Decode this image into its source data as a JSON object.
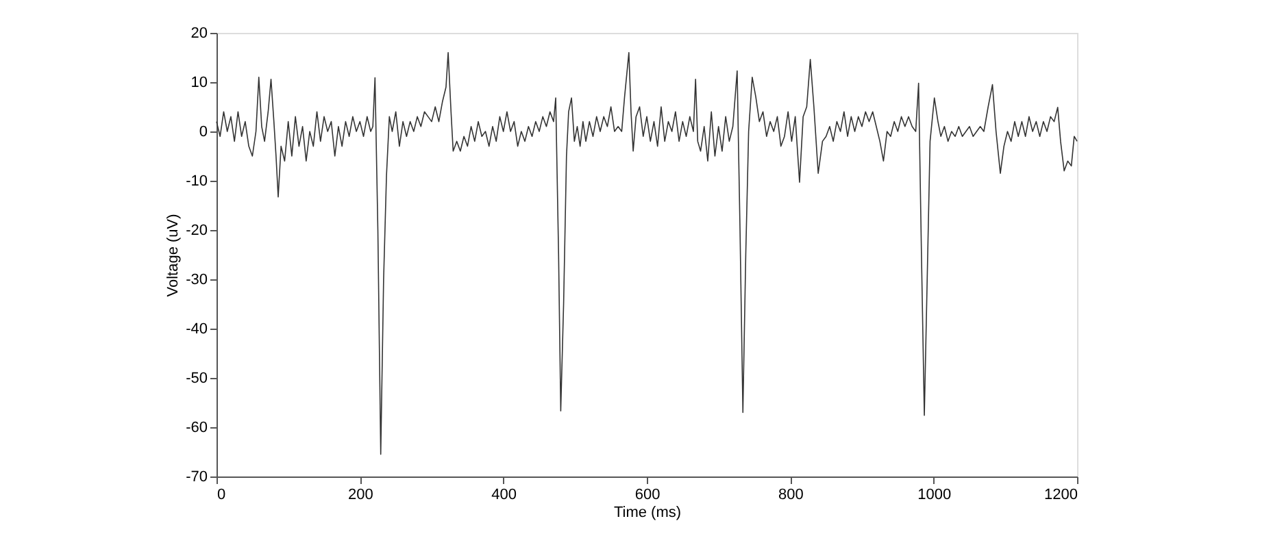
{
  "chart_data": {
    "type": "line",
    "xlabel": "Time (ms)",
    "ylabel": "Voltage (uV)",
    "x": [
      0,
      5,
      10,
      15,
      20,
      25,
      30,
      35,
      40,
      45,
      50,
      55,
      59,
      63,
      67,
      72,
      76,
      80,
      83,
      86,
      90,
      95,
      100,
      105,
      110,
      115,
      120,
      125,
      130,
      135,
      140,
      145,
      150,
      155,
      160,
      165,
      170,
      175,
      180,
      185,
      190,
      195,
      200,
      205,
      210,
      215,
      218,
      221,
      225,
      229,
      233,
      237,
      241,
      245,
      250,
      255,
      260,
      265,
      270,
      275,
      280,
      285,
      290,
      295,
      300,
      305,
      310,
      315,
      320,
      323,
      327,
      330,
      335,
      340,
      345,
      350,
      355,
      360,
      365,
      370,
      375,
      380,
      385,
      390,
      395,
      400,
      405,
      410,
      415,
      420,
      425,
      430,
      435,
      440,
      445,
      450,
      455,
      460,
      465,
      470,
      473,
      477,
      480,
      484,
      488,
      491,
      495,
      499,
      503,
      507,
      511,
      515,
      520,
      525,
      530,
      535,
      540,
      545,
      550,
      555,
      560,
      565,
      569,
      575,
      578,
      581,
      585,
      590,
      595,
      600,
      605,
      610,
      615,
      620,
      625,
      630,
      635,
      640,
      645,
      650,
      655,
      660,
      665,
      668,
      671,
      675,
      680,
      685,
      690,
      695,
      700,
      705,
      710,
      715,
      720,
      726,
      730,
      734,
      738,
      742,
      747,
      752,
      757,
      762,
      767,
      772,
      777,
      782,
      787,
      792,
      797,
      802,
      807,
      813,
      818,
      823,
      828,
      833,
      839,
      845,
      850,
      855,
      860,
      865,
      870,
      875,
      880,
      885,
      890,
      895,
      900,
      905,
      910,
      915,
      920,
      925,
      930,
      935,
      940,
      945,
      950,
      955,
      960,
      965,
      970,
      975,
      979,
      983,
      987,
      991,
      995,
      1001,
      1006,
      1010,
      1015,
      1020,
      1025,
      1030,
      1035,
      1040,
      1045,
      1050,
      1055,
      1060,
      1065,
      1070,
      1076,
      1082,
      1087,
      1093,
      1098,
      1103,
      1108,
      1113,
      1118,
      1123,
      1128,
      1133,
      1138,
      1143,
      1148,
      1153,
      1158,
      1163,
      1168,
      1173,
      1177,
      1182,
      1187,
      1192,
      1196,
      1200
    ],
    "series": [
      {
        "color": "#333333",
        "values": [
          2,
          -1,
          4,
          0,
          3,
          -2,
          4,
          -1,
          2,
          -3,
          -5,
          0,
          11,
          1,
          -2,
          4,
          10.6,
          2,
          -5,
          -13.3,
          -3,
          -6,
          2,
          -5,
          3,
          -3,
          1,
          -6,
          0,
          -3,
          4,
          -2,
          3,
          0,
          2,
          -5,
          1,
          -3,
          2,
          -1,
          3,
          0,
          2,
          -1,
          3,
          0,
          1,
          10.9,
          -20,
          -65.5,
          -30,
          -9,
          3,
          0,
          4,
          -3,
          2,
          -1,
          2,
          0,
          3,
          1,
          4,
          3,
          2,
          5,
          2,
          6,
          9,
          16,
          4,
          -4,
          -2,
          -4,
          -1,
          -3,
          1,
          -2,
          2,
          -1,
          0,
          -3,
          1,
          -2,
          3,
          0,
          4,
          0,
          2,
          -3,
          0,
          -2,
          1,
          -1,
          2,
          0,
          3,
          1,
          4,
          2,
          6.8,
          -25,
          -56.7,
          -35,
          -5,
          4,
          6.8,
          -2,
          1,
          -3,
          2,
          -2,
          2,
          -1,
          3,
          0,
          3,
          1,
          5,
          0,
          1,
          0,
          7,
          16,
          4,
          -4,
          3,
          5,
          -1,
          3,
          -2,
          2,
          -3,
          5,
          -2,
          2,
          0,
          4,
          -2,
          2,
          -1,
          3,
          0,
          10.6,
          -2,
          -4,
          1,
          -6,
          4,
          -5,
          1,
          -4,
          3,
          -2,
          1,
          12.3,
          -20,
          -57,
          -25,
          0,
          11,
          7,
          2,
          4,
          -1,
          2,
          0,
          3,
          -3,
          -1,
          4,
          -2,
          3,
          -10.3,
          3,
          5,
          14.6,
          5,
          -8.5,
          -2,
          -1,
          1,
          -2,
          2,
          0,
          4,
          -1,
          3,
          0,
          3,
          1,
          4,
          2,
          4,
          1,
          -2,
          -6,
          0,
          -1,
          2,
          0,
          3,
          1,
          3,
          1,
          0,
          9.8,
          -25,
          -57.6,
          -30,
          -2,
          6.8,
          2,
          -1,
          1,
          -2,
          0,
          -1,
          1,
          -1,
          0,
          1,
          -1,
          0,
          1,
          0,
          5,
          9.5,
          0,
          -8.5,
          -3,
          0,
          -2,
          2,
          -1,
          2,
          -1,
          3,
          0,
          2,
          -1,
          2,
          0,
          3,
          2,
          4.9,
          -2,
          -8,
          -6,
          -7,
          -1,
          -2
        ]
      }
    ],
    "xlim": [
      0,
      1200
    ],
    "xticks": [
      0,
      200,
      400,
      600,
      800,
      1000,
      1200
    ],
    "ylim": [
      -70,
      20
    ],
    "yticks": [
      -70,
      -60,
      -50,
      -40,
      -30,
      -20,
      -10,
      0,
      10,
      20
    ],
    "grid": false,
    "marker": "none",
    "line_style": "solid"
  }
}
